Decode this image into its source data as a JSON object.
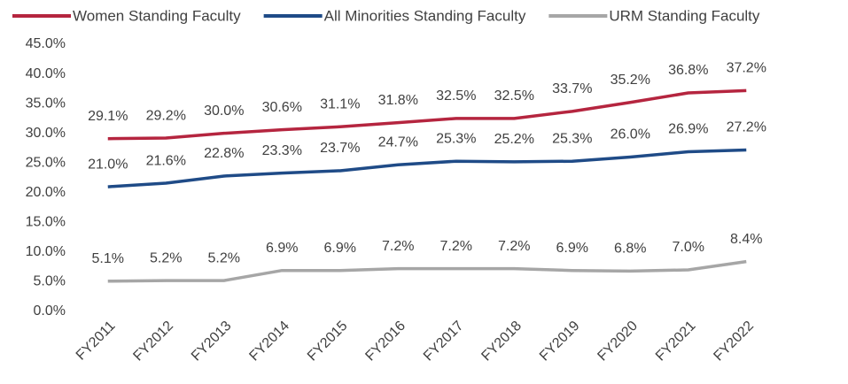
{
  "chart_data": {
    "type": "line",
    "categories": [
      "FY2011",
      "FY2012",
      "FY2013",
      "FY2014",
      "FY2015",
      "FY2016",
      "FY2017",
      "FY2018",
      "FY2019",
      "FY2020",
      "FY2021",
      "FY2022"
    ],
    "series": [
      {
        "name": "Women Standing Faculty",
        "color": "#b5253f",
        "values": [
          29.1,
          29.2,
          30.0,
          30.6,
          31.1,
          31.8,
          32.5,
          32.5,
          33.7,
          35.2,
          36.8,
          37.2
        ],
        "value_labels": [
          "29.1%",
          "29.2%",
          "30.0%",
          "30.6%",
          "31.1%",
          "31.8%",
          "32.5%",
          "32.5%",
          "33.7%",
          "35.2%",
          "36.8%",
          "37.2%"
        ]
      },
      {
        "name": "All Minorities Standing Faculty",
        "color": "#1f4b87",
        "values": [
          21.0,
          21.6,
          22.8,
          23.3,
          23.7,
          24.7,
          25.3,
          25.2,
          25.3,
          26.0,
          26.9,
          27.2
        ],
        "value_labels": [
          "21.0%",
          "21.6%",
          "22.8%",
          "23.3%",
          "23.7%",
          "24.7%",
          "25.3%",
          "25.2%",
          "25.3%",
          "26.0%",
          "26.9%",
          "27.2%"
        ]
      },
      {
        "name": "URM Standing Faculty",
        "color": "#a6a6a6",
        "values": [
          5.1,
          5.2,
          5.2,
          6.9,
          6.9,
          7.2,
          7.2,
          7.2,
          6.9,
          6.8,
          7.0,
          8.4
        ],
        "value_labels": [
          "5.1%",
          "5.2%",
          "5.2%",
          "6.9%",
          "6.9%",
          "7.2%",
          "7.2%",
          "7.2%",
          "6.9%",
          "6.8%",
          "7.0%",
          "8.4%"
        ]
      }
    ],
    "ylim": [
      0,
      45
    ],
    "yticks": [
      {
        "value": 0,
        "label": "0.0%"
      },
      {
        "value": 5,
        "label": "5.0%"
      },
      {
        "value": 10,
        "label": "10.0%"
      },
      {
        "value": 15,
        "label": "15.0%"
      },
      {
        "value": 20,
        "label": "20.0%"
      },
      {
        "value": 25,
        "label": "25.0%"
      },
      {
        "value": 30,
        "label": "30.0%"
      },
      {
        "value": 35,
        "label": "35.0%"
      },
      {
        "value": 40,
        "label": "40.0%"
      },
      {
        "value": 45,
        "label": "45.0%"
      }
    ],
    "legend": "top"
  }
}
